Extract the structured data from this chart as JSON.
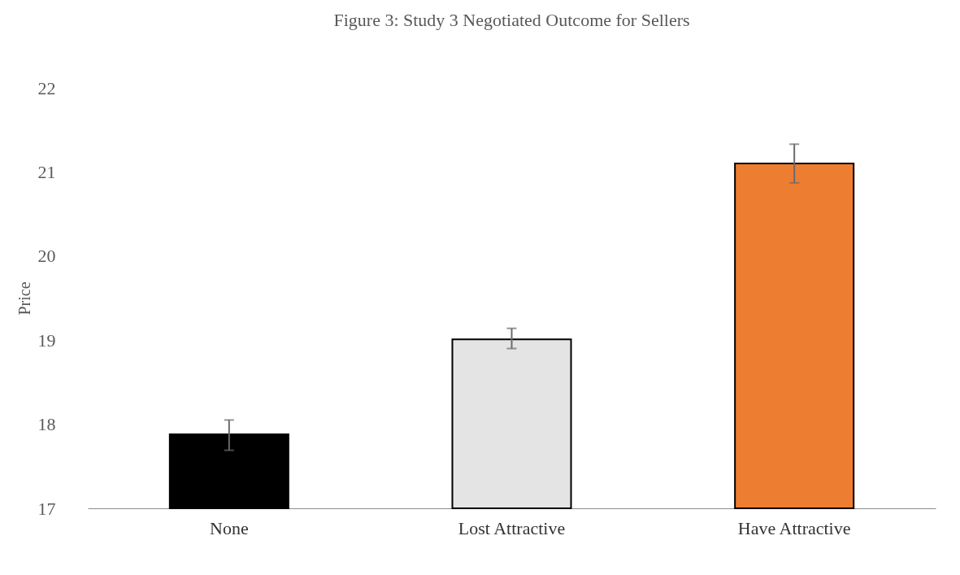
{
  "chart_data": {
    "type": "bar",
    "title": "Figure 3: Study 3 Negotiated Outcome for Sellers",
    "ylabel": "Price",
    "categories": [
      "None",
      "Lost Attractive",
      "Have Attractive"
    ],
    "values": [
      17.88,
      19.01,
      21.1
    ],
    "colors": [
      "#000000",
      "#e4e4e4",
      "#ed7d31"
    ],
    "errors": [
      [
        17.69,
        18.05
      ],
      [
        18.9,
        19.14
      ],
      [
        20.87,
        21.33
      ]
    ],
    "ylim": [
      17,
      22
    ],
    "yticks": [
      17,
      18,
      19,
      20,
      21,
      22
    ],
    "grid": false
  }
}
